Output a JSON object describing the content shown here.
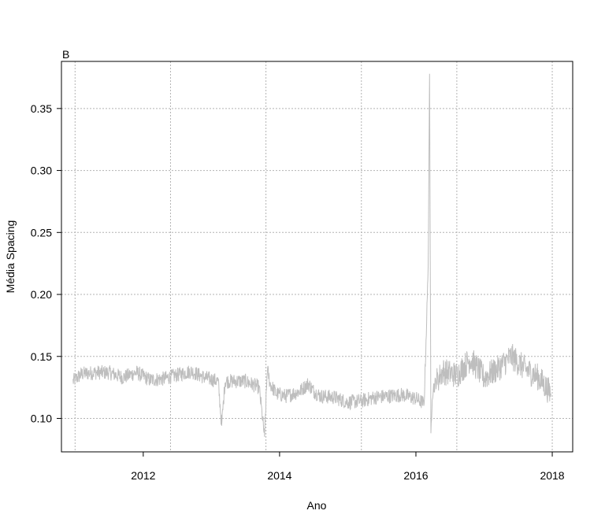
{
  "chart_data": {
    "type": "line",
    "panel_label": "B",
    "xlabel": "Ano",
    "ylabel": "Média Spacing",
    "xlim": [
      2010.8,
      2018.3
    ],
    "ylim": [
      0.073,
      0.388
    ],
    "x_ticks": [
      2012,
      2014,
      2016,
      2018
    ],
    "x_tick_labels": [
      "2012",
      "2014",
      "2016",
      "2018"
    ],
    "x_grid": [
      2011,
      2012.4,
      2013.8,
      2015.2,
      2016.6,
      2018
    ],
    "y_ticks": [
      0.1,
      0.15,
      0.2,
      0.25,
      0.3,
      0.35
    ],
    "y_tick_labels": [
      "0.10",
      "0.15",
      "0.20",
      "0.25",
      "0.30",
      "0.35"
    ],
    "grid": true,
    "line_color": "#bebebe",
    "series": [
      {
        "x": [
          2010.97,
          2011.1,
          2011.3,
          2011.5,
          2011.7,
          2011.9,
          2012.1,
          2012.3,
          2012.5,
          2012.7,
          2012.9,
          2013.1,
          2013.15,
          2013.2,
          2013.3,
          2013.5,
          2013.7,
          2013.78,
          2013.82,
          2013.86,
          2013.95,
          2014.1,
          2014.3,
          2014.42,
          2014.5,
          2014.6,
          2014.8,
          2015.0,
          2015.2,
          2015.4,
          2015.6,
          2015.8,
          2016.0,
          2016.12,
          2016.18,
          2016.2,
          2016.22,
          2016.24,
          2016.26,
          2016.3,
          2016.4,
          2016.6,
          2016.8,
          2017.0,
          2017.2,
          2017.4,
          2017.6,
          2017.8,
          2017.98
        ],
        "y": [
          0.13,
          0.136,
          0.137,
          0.137,
          0.133,
          0.137,
          0.131,
          0.132,
          0.135,
          0.138,
          0.133,
          0.13,
          0.094,
          0.13,
          0.13,
          0.13,
          0.125,
          0.085,
          0.14,
          0.128,
          0.12,
          0.118,
          0.122,
          0.128,
          0.122,
          0.118,
          0.117,
          0.113,
          0.114,
          0.117,
          0.118,
          0.119,
          0.116,
          0.112,
          0.222,
          0.378,
          0.088,
          0.12,
          0.125,
          0.13,
          0.138,
          0.135,
          0.148,
          0.133,
          0.14,
          0.15,
          0.14,
          0.133,
          0.12
        ]
      }
    ]
  }
}
